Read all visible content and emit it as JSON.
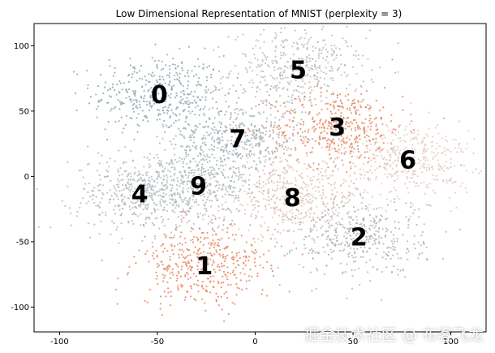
{
  "chart_data": {
    "type": "scatter",
    "title": "Low Dimensional Representation of MNIST (perplexity = 3)",
    "xlim": [
      -113,
      118
    ],
    "ylim": [
      -119,
      117
    ],
    "xticks": [
      -100,
      -50,
      0,
      50,
      100
    ],
    "yticks": [
      100,
      50,
      0,
      -50,
      -100
    ],
    "grid": false,
    "clusters": [
      {
        "label": "0",
        "x": -49,
        "y": 63,
        "color": "#8FA9AE"
      },
      {
        "label": "5",
        "x": 22,
        "y": 82,
        "color": "#B8BDBF"
      },
      {
        "label": "3",
        "x": 42,
        "y": 38,
        "color": "#E8875F"
      },
      {
        "label": "7",
        "x": -9,
        "y": 29,
        "color": "#A3B2B6"
      },
      {
        "label": "6",
        "x": 78,
        "y": 13,
        "color": "#E3C9C0"
      },
      {
        "label": "4",
        "x": -59,
        "y": -13,
        "color": "#B3BBBE"
      },
      {
        "label": "9",
        "x": -29,
        "y": -7,
        "color": "#AFB8BB"
      },
      {
        "label": "8",
        "x": 19,
        "y": -16,
        "color": "#E4C2B3"
      },
      {
        "label": "2",
        "x": 53,
        "y": -46,
        "color": "#AEB5B8"
      },
      {
        "label": "1",
        "x": -26,
        "y": -68,
        "color": "#E8875F"
      }
    ]
  },
  "watermark": "掘金技术社区 @ 布客飞龙"
}
